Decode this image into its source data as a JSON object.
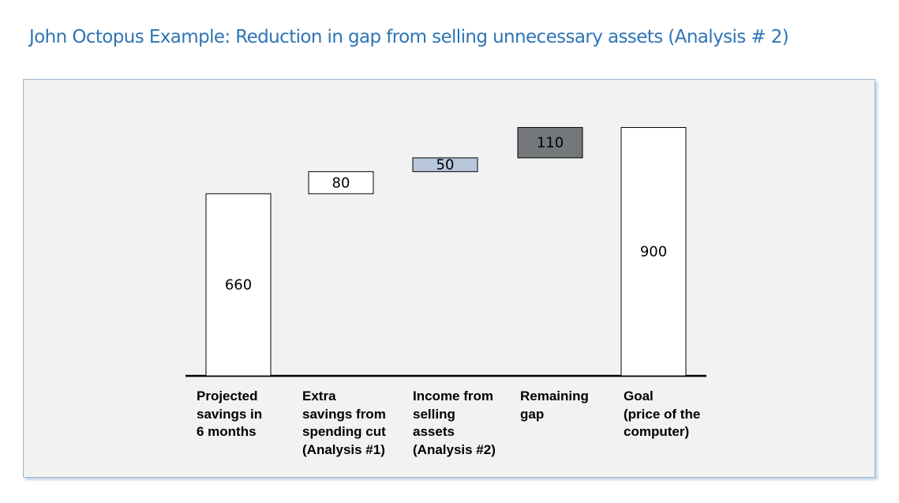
{
  "title": "John Octopus Example: Reduction in gap from selling unnecessary assets (Analysis # 2)",
  "colors": {
    "title": "#2e74b5",
    "panel_background": "#f2f2f2",
    "bar_white": "#ffffff",
    "bar_light_blue": "#b8c7d9",
    "bar_dark_gray": "#75787b"
  },
  "chart_data": {
    "type": "waterfall",
    "categories": [
      "Projected\nsavings in\n6 months",
      "Extra\nsavings from\nspending cut\n(Analysis #1)",
      "Income from\nselling\nassets\n(Analysis #2)",
      "Remaining\ngap",
      "Goal\n(price of the\ncomputer)"
    ],
    "values": [
      660,
      80,
      50,
      110,
      900
    ],
    "labels": [
      "660",
      "80",
      "50",
      "110",
      "900"
    ],
    "bar_kinds": [
      "total",
      "increment",
      "increment",
      "increment",
      "total"
    ],
    "bar_fills": [
      "#ffffff",
      "#ffffff",
      "#b8c7d9",
      "#75787b",
      "#ffffff"
    ],
    "ylim": [
      0,
      1000
    ],
    "grid": false,
    "legend": "none",
    "xlabel": "",
    "ylabel": ""
  }
}
